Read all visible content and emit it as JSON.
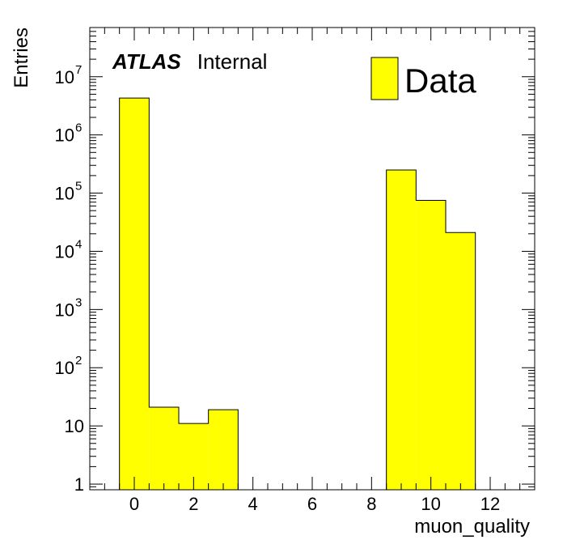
{
  "chart_data": {
    "type": "bar",
    "histogram": true,
    "xlabel": "muon_quality",
    "ylabel": "Entries",
    "xlim": [
      -1.5,
      13.5
    ],
    "ylim": [
      0.8,
      70000000
    ],
    "yscale": "log",
    "x_ticks": [
      0,
      2,
      4,
      6,
      8,
      10,
      12
    ],
    "x_tick_labels": [
      "0",
      "2",
      "4",
      "6",
      "8",
      "10",
      "12"
    ],
    "y_ticks": [
      1,
      10,
      100,
      1000,
      10000,
      100000,
      1000000,
      10000000
    ],
    "y_tick_labels": [
      {
        "base": "1",
        "exp": ""
      },
      {
        "base": "10",
        "exp": ""
      },
      {
        "base": "10",
        "exp": "2"
      },
      {
        "base": "10",
        "exp": "3"
      },
      {
        "base": "10",
        "exp": "4"
      },
      {
        "base": "10",
        "exp": "5"
      },
      {
        "base": "10",
        "exp": "6"
      },
      {
        "base": "10",
        "exp": "7"
      }
    ],
    "bins": [
      {
        "low": -0.5,
        "high": 0.5,
        "value": 4300000
      },
      {
        "low": 0.5,
        "high": 1.5,
        "value": 21
      },
      {
        "low": 1.5,
        "high": 2.5,
        "value": 11
      },
      {
        "low": 2.5,
        "high": 3.5,
        "value": 19
      },
      {
        "low": 8.5,
        "high": 9.5,
        "value": 250000
      },
      {
        "low": 9.5,
        "high": 10.5,
        "value": 75000
      },
      {
        "low": 10.5,
        "high": 11.5,
        "value": 21000
      }
    ],
    "series": [
      {
        "name": "Data",
        "color": "#ffff00"
      }
    ],
    "legend": {
      "position": "top-right",
      "label": "Data"
    },
    "annotation": {
      "bold": "ATLAS",
      "text": "Internal"
    },
    "grid": false
  }
}
